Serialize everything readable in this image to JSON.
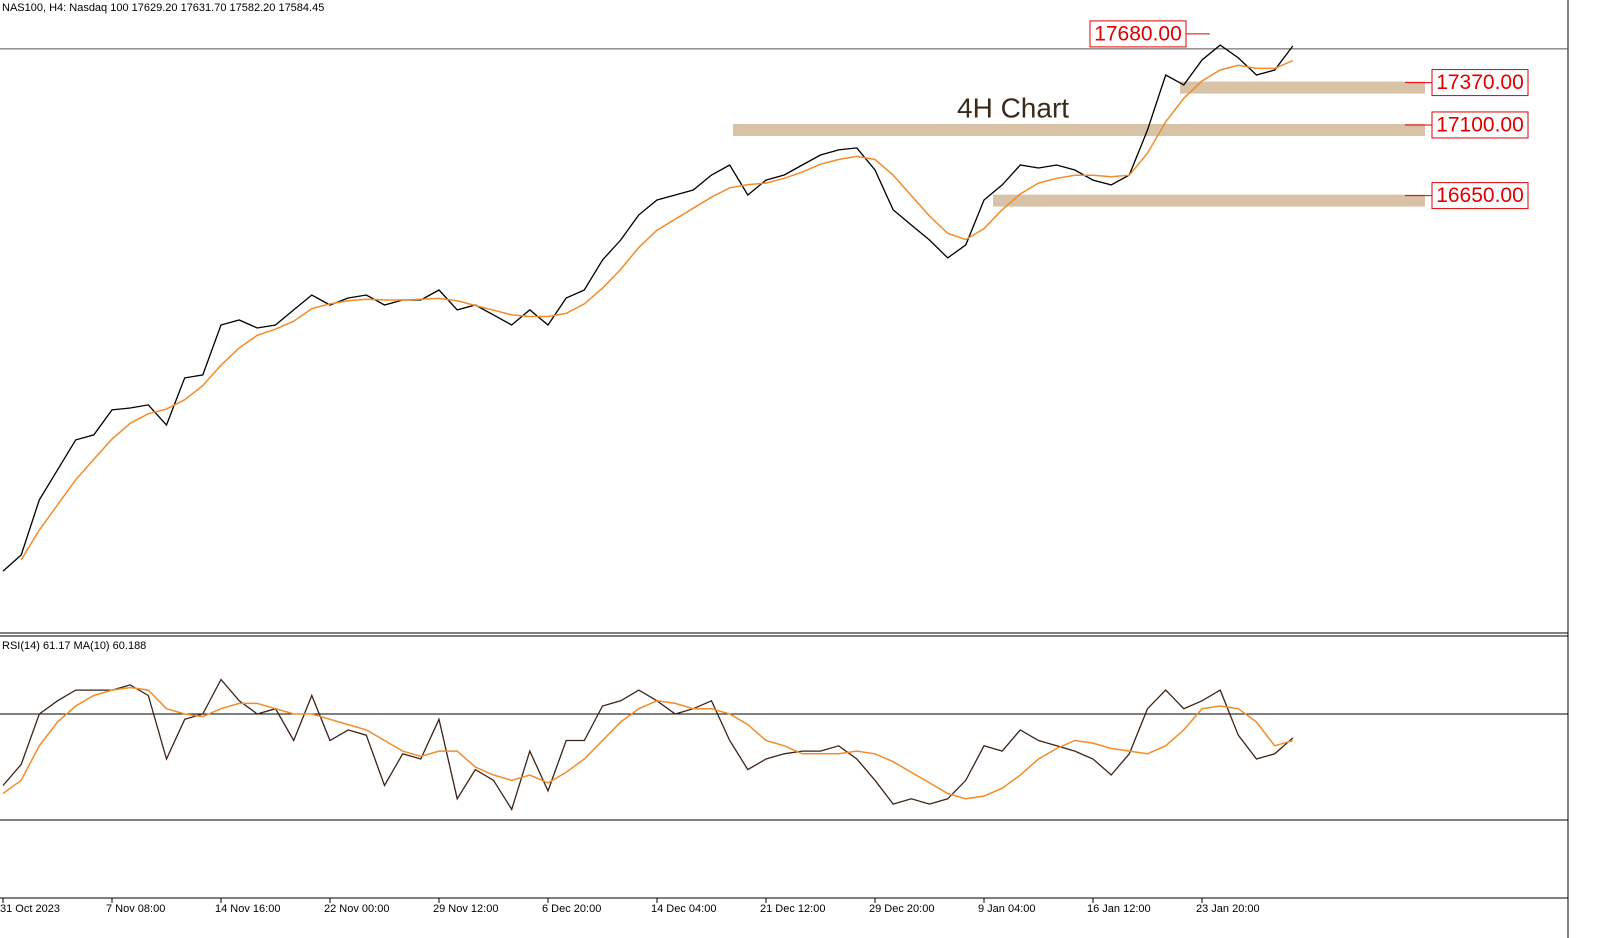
{
  "chart_data": [
    {
      "type": "line",
      "header": "NAS100, H4:  Nasdaq 100  17629.20 17631.70 17582.20 17584.45",
      "annotation": "4H Chart",
      "xlim": [
        0,
        86
      ],
      "ylim": [
        13864,
        17896
      ],
      "price_line": 17584.45,
      "levels": [
        {
          "value": 17680,
          "label": "17680.00"
        },
        {
          "value": 17370,
          "label": "17370.00"
        },
        {
          "value": 17100,
          "label": "17100.00"
        },
        {
          "value": 16650,
          "label": "16650.00"
        }
      ],
      "series": [
        {
          "color": "#000000",
          "values": [
            14258,
            14361,
            14712,
            14903,
            15094,
            15126,
            15285,
            15297,
            15317,
            15189,
            15489,
            15508,
            15826,
            15858,
            15807,
            15826,
            15922,
            16017,
            15953,
            15998,
            16017,
            15953,
            15985,
            15985,
            16049,
            15922,
            15953,
            15890,
            15826,
            15922,
            15826,
            15998,
            16049,
            16240,
            16367,
            16527,
            16622,
            16654,
            16686,
            16781,
            16845,
            16654,
            16749,
            16781,
            16845,
            16909,
            16941,
            16954,
            16813,
            16559,
            16463,
            16367,
            16253,
            16336,
            16622,
            16718,
            16845,
            16826,
            16845,
            16813,
            16749,
            16718,
            16781,
            17068,
            17418,
            17355,
            17514,
            17609,
            17527,
            17418,
            17450,
            17603
          ]
        },
        {
          "color": "#f28c28",
          "values": [
            null,
            14330,
            14520,
            14680,
            14840,
            14970,
            15100,
            15200,
            15260,
            15290,
            15350,
            15440,
            15570,
            15680,
            15760,
            15800,
            15850,
            15930,
            15960,
            15980,
            15990,
            15985,
            15985,
            15990,
            15995,
            15980,
            15950,
            15920,
            15890,
            15880,
            15880,
            15900,
            15960,
            16060,
            16180,
            16320,
            16430,
            16500,
            16570,
            16640,
            16700,
            16720,
            16730,
            16760,
            16800,
            16850,
            16880,
            16900,
            16880,
            16780,
            16650,
            16520,
            16410,
            16370,
            16440,
            16560,
            16660,
            16730,
            16760,
            16780,
            16780,
            16770,
            16780,
            16920,
            17120,
            17270,
            17380,
            17450,
            17480,
            17460,
            17460,
            17510
          ]
        }
      ]
    },
    {
      "type": "line",
      "header": "RSI(14) 61.17 MA(10) 60.188",
      "xlim": [
        0,
        86
      ],
      "ylim": [
        0,
        100
      ],
      "levels": [
        70,
        30
      ],
      "xticks": [
        {
          "value": 0,
          "label": "31 Oct 2023"
        },
        {
          "value": 6,
          "label": "7 Nov 08:00"
        },
        {
          "value": 12,
          "label": "14 Nov 16:00"
        },
        {
          "value": 18,
          "label": "22 Nov 00:00"
        },
        {
          "value": 24,
          "label": "29 Nov 12:00"
        },
        {
          "value": 30,
          "label": "6 Dec 20:00"
        },
        {
          "value": 36,
          "label": "14 Dec 04:00"
        },
        {
          "value": 42,
          "label": "21 Dec 12:00"
        },
        {
          "value": 48,
          "label": "29 Dec 20:00"
        },
        {
          "value": 54,
          "label": "9 Jan 04:00"
        },
        {
          "value": 60,
          "label": "16 Jan 12:00"
        },
        {
          "value": 66,
          "label": "23 Jan 20:00"
        }
      ],
      "series": [
        {
          "color": "#3b2416",
          "values": [
            43,
            51,
            70,
            75,
            79,
            79,
            79,
            81,
            77,
            53,
            68,
            70,
            83,
            75,
            70,
            72,
            60,
            77,
            60,
            64,
            62,
            43,
            55,
            53,
            68,
            38,
            49,
            45,
            34,
            56,
            41,
            60,
            60,
            73,
            75,
            79,
            75,
            70,
            72,
            75,
            60,
            49,
            53,
            55,
            56,
            56,
            58,
            53,
            45,
            36,
            38,
            36,
            38,
            45,
            58,
            56,
            64,
            60,
            58,
            56,
            53,
            47,
            55,
            72,
            79,
            72,
            75,
            79,
            62,
            53,
            55,
            61
          ]
        },
        {
          "color": "#f28c28",
          "values": [
            40,
            45,
            58,
            67,
            73,
            77,
            79,
            80,
            79,
            72,
            70,
            69,
            72,
            74,
            74,
            72,
            70,
            70,
            68,
            66,
            64,
            60,
            56,
            54,
            56,
            56,
            50,
            47,
            45,
            47,
            44,
            48,
            53,
            60,
            67,
            72,
            75,
            74,
            72,
            72,
            70,
            66,
            60,
            58,
            55,
            55,
            55,
            56,
            55,
            52,
            48,
            44,
            40,
            38,
            39,
            42,
            47,
            53,
            57,
            60,
            59,
            57,
            56,
            55,
            58,
            64,
            72,
            73,
            72,
            67,
            58,
            60
          ]
        }
      ]
    }
  ]
}
